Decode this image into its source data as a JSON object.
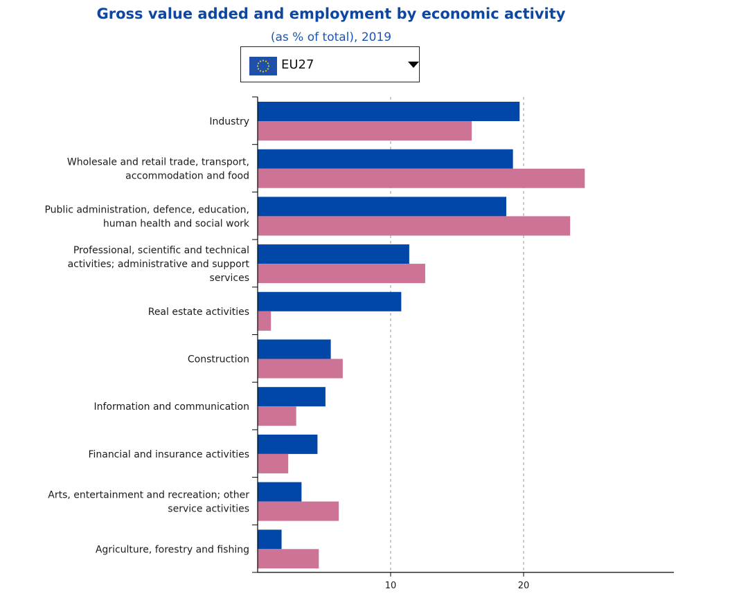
{
  "header": {
    "title": "Gross value added and employment by economic activity",
    "subtitle": "(as % of total), 2019"
  },
  "selector": {
    "value": "EU27",
    "flag_icon": "eu-flag-icon"
  },
  "colors": {
    "gva": "#0047a8",
    "employment": "#cc7396",
    "title": "#0e47a1"
  },
  "chart_data": {
    "type": "bar",
    "orientation": "horizontal",
    "categories": [
      [
        "Industry"
      ],
      [
        "Wholesale and retail trade, transport,",
        "accommodation and food"
      ],
      [
        "Public administration, defence, education,",
        "human health and social work"
      ],
      [
        "Professional, scientific and technical",
        "activities; administrative and support",
        "services"
      ],
      [
        "Real estate activities"
      ],
      [
        "Construction"
      ],
      [
        "Information and communication"
      ],
      [
        "Financial and insurance activities"
      ],
      [
        "Arts, entertainment and recreation; other",
        "service activities"
      ],
      [
        "Agriculture, forestry and fishing"
      ]
    ],
    "series": [
      {
        "values": [
          19.7,
          19.2,
          18.7,
          11.4,
          10.8,
          5.5,
          5.1,
          4.5,
          3.3,
          1.8
        ]
      },
      {
        "values": [
          16.1,
          24.6,
          23.5,
          12.6,
          1.0,
          6.4,
          2.9,
          2.3,
          6.1,
          4.6
        ]
      }
    ],
    "x_ticks": [
      10,
      20
    ],
    "xlim": [
      0,
      31.4
    ],
    "grid": "vertical dashed at ticks",
    "legend": "none"
  }
}
